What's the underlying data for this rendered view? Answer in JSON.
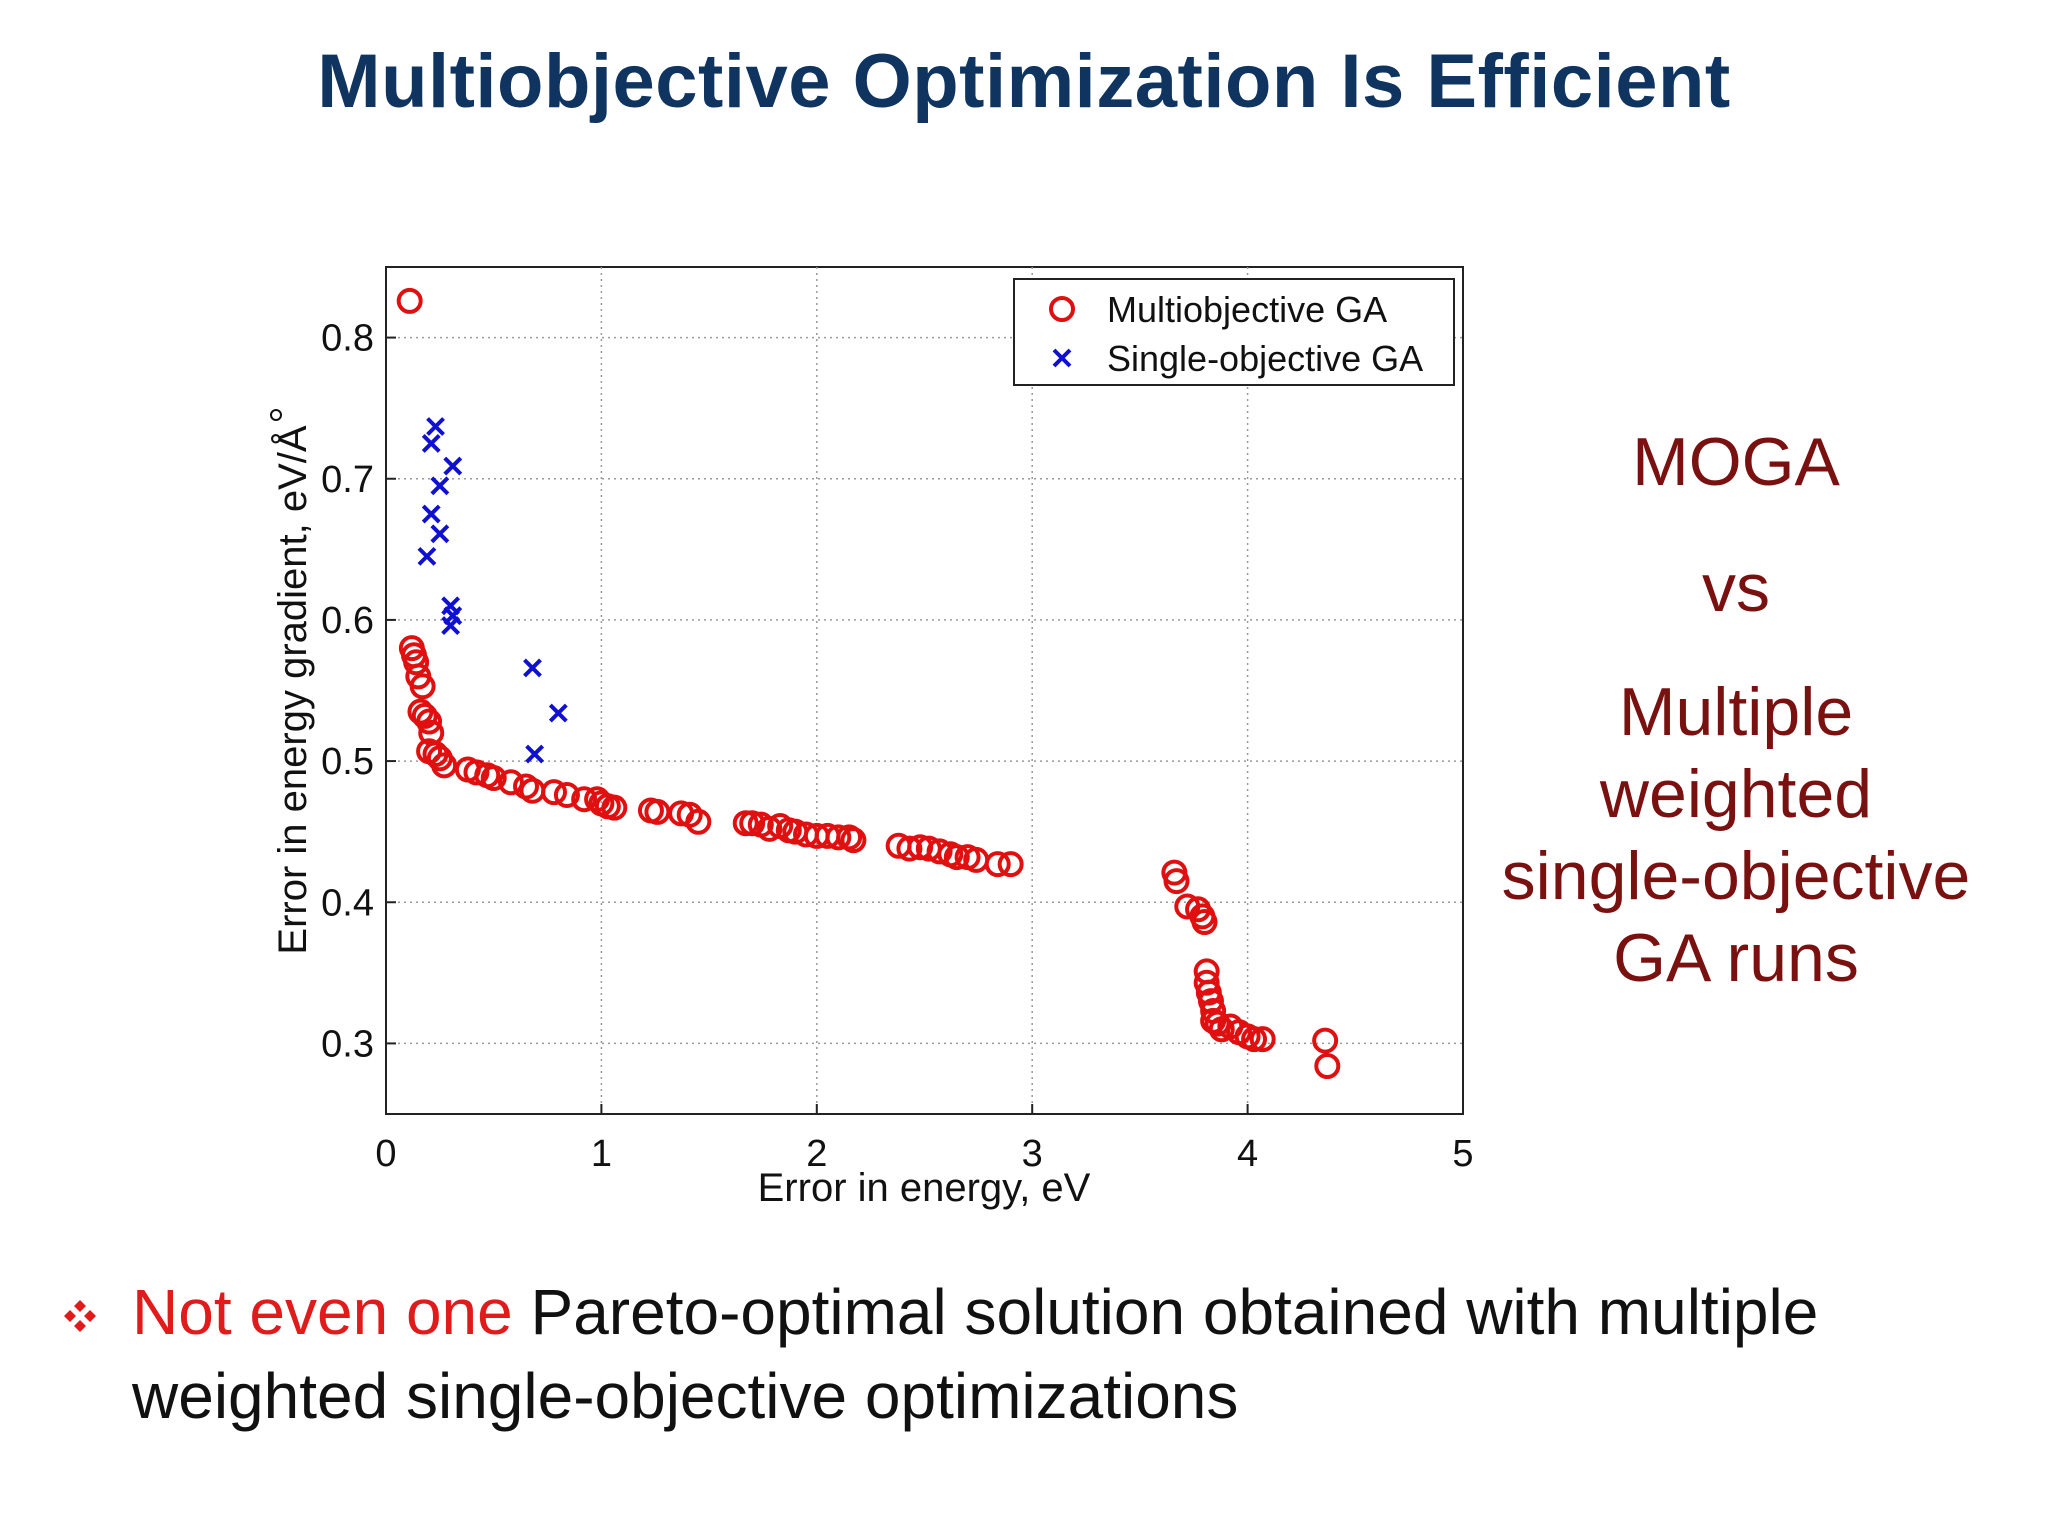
{
  "slide": {
    "title": "Multiobjective Optimization Is Efficient",
    "side_text": {
      "line1": "MOGA",
      "line2": "vs",
      "line3": "Multiple",
      "line4": "weighted",
      "line5": "single-objective",
      "line6": "GA runs"
    },
    "bullet": {
      "icon": "diamond-bullet-icon",
      "highlight": "Not even one",
      "rest": " Pareto-optimal solution obtained with multiple weighted single-objective optimizations"
    },
    "colors": {
      "title": "#0f3460",
      "side_text": "#7a1111",
      "highlight": "#e01b1b",
      "moga": "#e01010",
      "soga": "#1010d0"
    }
  },
  "chart_data": {
    "type": "scatter",
    "xlabel": "Error in energy, eV",
    "ylabel": "Error in energy gradient, eV/Å",
    "xlim": [
      0,
      5
    ],
    "ylim": [
      0.25,
      0.85
    ],
    "xticks": [
      "0",
      "1",
      "2",
      "3",
      "4",
      "5"
    ],
    "yticks": [
      "0.3",
      "0.4",
      "0.5",
      "0.6",
      "0.7",
      "0.8"
    ],
    "grid": true,
    "legend_position": "top-right",
    "series": [
      {
        "name": "Multiobjective GA",
        "marker": "circle",
        "color": "#e01010",
        "points": [
          [
            0.11,
            0.826
          ],
          [
            0.12,
            0.58
          ],
          [
            0.13,
            0.575
          ],
          [
            0.14,
            0.57
          ],
          [
            0.15,
            0.56
          ],
          [
            0.17,
            0.553
          ],
          [
            0.16,
            0.535
          ],
          [
            0.18,
            0.532
          ],
          [
            0.2,
            0.528
          ],
          [
            0.21,
            0.52
          ],
          [
            0.2,
            0.507
          ],
          [
            0.23,
            0.505
          ],
          [
            0.25,
            0.502
          ],
          [
            0.27,
            0.497
          ],
          [
            0.38,
            0.494
          ],
          [
            0.42,
            0.492
          ],
          [
            0.47,
            0.49
          ],
          [
            0.5,
            0.488
          ],
          [
            0.58,
            0.485
          ],
          [
            0.65,
            0.482
          ],
          [
            0.68,
            0.479
          ],
          [
            0.78,
            0.478
          ],
          [
            0.84,
            0.476
          ],
          [
            0.92,
            0.473
          ],
          [
            0.98,
            0.473
          ],
          [
            1.0,
            0.47
          ],
          [
            1.03,
            0.468
          ],
          [
            1.06,
            0.467
          ],
          [
            1.23,
            0.465
          ],
          [
            1.26,
            0.464
          ],
          [
            1.37,
            0.463
          ],
          [
            1.41,
            0.462
          ],
          [
            1.45,
            0.457
          ],
          [
            1.67,
            0.456
          ],
          [
            1.7,
            0.456
          ],
          [
            1.74,
            0.455
          ],
          [
            1.78,
            0.452
          ],
          [
            1.83,
            0.454
          ],
          [
            1.87,
            0.451
          ],
          [
            1.9,
            0.45
          ],
          [
            1.95,
            0.448
          ],
          [
            2.0,
            0.447
          ],
          [
            2.05,
            0.447
          ],
          [
            2.1,
            0.446
          ],
          [
            2.15,
            0.446
          ],
          [
            2.17,
            0.444
          ],
          [
            2.38,
            0.44
          ],
          [
            2.43,
            0.438
          ],
          [
            2.48,
            0.439
          ],
          [
            2.52,
            0.438
          ],
          [
            2.57,
            0.436
          ],
          [
            2.62,
            0.434
          ],
          [
            2.65,
            0.432
          ],
          [
            2.7,
            0.432
          ],
          [
            2.74,
            0.43
          ],
          [
            2.84,
            0.427
          ],
          [
            2.9,
            0.427
          ],
          [
            3.66,
            0.421
          ],
          [
            3.67,
            0.415
          ],
          [
            3.72,
            0.397
          ],
          [
            3.77,
            0.395
          ],
          [
            3.79,
            0.39
          ],
          [
            3.8,
            0.386
          ],
          [
            3.81,
            0.351
          ],
          [
            3.81,
            0.343
          ],
          [
            3.82,
            0.336
          ],
          [
            3.83,
            0.33
          ],
          [
            3.84,
            0.323
          ],
          [
            3.84,
            0.316
          ],
          [
            3.86,
            0.314
          ],
          [
            3.88,
            0.31
          ],
          [
            3.92,
            0.312
          ],
          [
            3.96,
            0.308
          ],
          [
            4.0,
            0.305
          ],
          [
            4.03,
            0.303
          ],
          [
            4.07,
            0.303
          ],
          [
            4.36,
            0.302
          ],
          [
            4.37,
            0.284
          ]
        ]
      },
      {
        "name": "Single-objective GA",
        "marker": "cross",
        "color": "#1010d0",
        "points": [
          [
            0.23,
            0.737
          ],
          [
            0.21,
            0.725
          ],
          [
            0.31,
            0.709
          ],
          [
            0.25,
            0.695
          ],
          [
            0.21,
            0.675
          ],
          [
            0.25,
            0.661
          ],
          [
            0.19,
            0.645
          ],
          [
            0.3,
            0.61
          ],
          [
            0.31,
            0.603
          ],
          [
            0.3,
            0.596
          ],
          [
            0.68,
            0.566
          ],
          [
            0.8,
            0.534
          ],
          [
            0.69,
            0.505
          ]
        ]
      }
    ]
  }
}
